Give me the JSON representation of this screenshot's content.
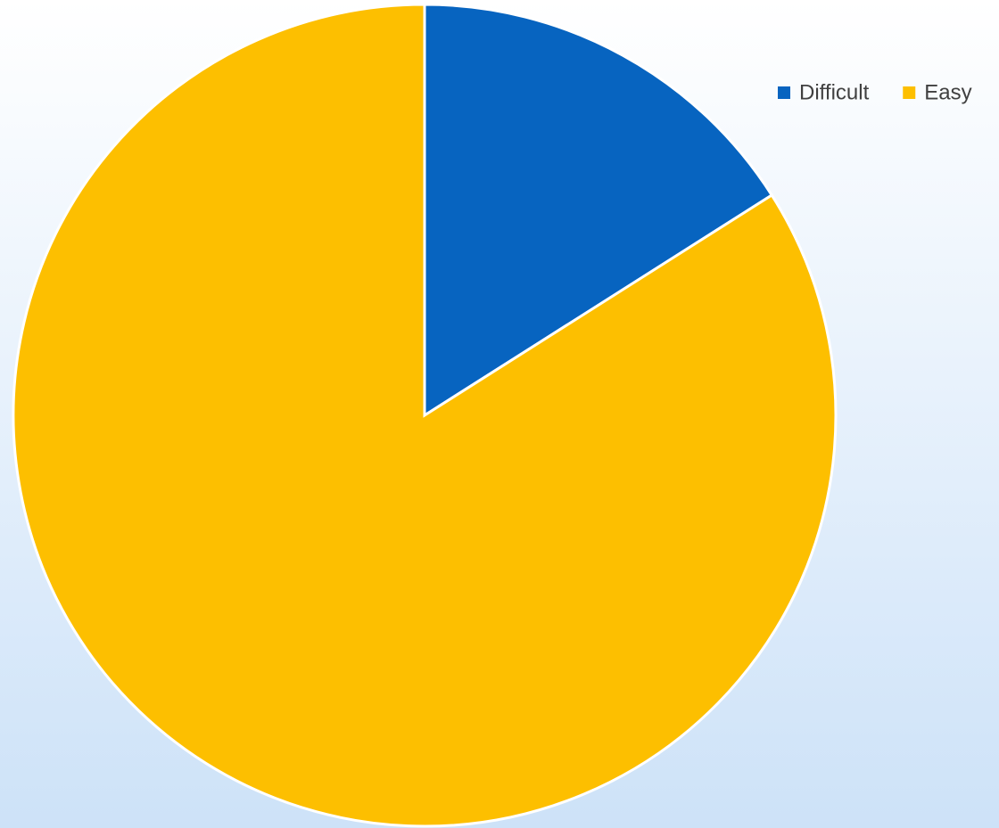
{
  "chart_data": {
    "type": "pie",
    "categories": [
      "Difficult",
      "Easy"
    ],
    "values": [
      16,
      84
    ],
    "colors": [
      "#0764c0",
      "#fdbf00"
    ],
    "legend": "top-right"
  }
}
